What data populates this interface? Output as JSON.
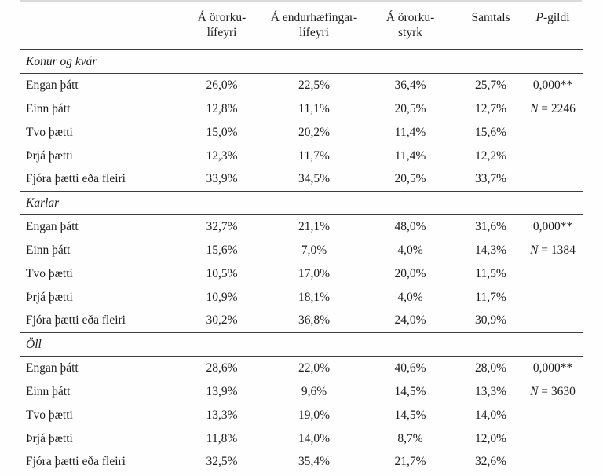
{
  "chart_data": {
    "type": "table",
    "title": "",
    "columns": [
      "",
      "Á örorku-lífeyri",
      "Á endurhæfingar-lífeyri",
      "Á örorku-styrk",
      "Samtals",
      "P-gildi"
    ],
    "header": {
      "col0": "",
      "col1": {
        "line1": "Á örorku-",
        "line2": "lífeyri"
      },
      "col2": {
        "line1": "Á endurhæfingar-",
        "line2": "lífeyri"
      },
      "col3": {
        "line1": "Á örorku-",
        "line2": "styrk"
      },
      "col4": {
        "line1": "Samtals",
        "line2": ""
      },
      "col5": {
        "italic": "P",
        "rest": "-gildi"
      }
    },
    "groups": [
      {
        "name": "Konur og kvár",
        "rows": [
          {
            "label": "Engan þátt",
            "values": [
              "26,0%",
              "22,5%",
              "36,4%",
              "25,7%"
            ],
            "note": {
              "italic": "",
              "text": "0,000**"
            }
          },
          {
            "label": "Einn þátt",
            "values": [
              "12,8%",
              "11,1%",
              "20,5%",
              "12,7%"
            ],
            "note": {
              "italic": "N",
              "text": " = 2246"
            }
          },
          {
            "label": "Tvo þætti",
            "values": [
              "15,0%",
              "20,2%",
              "11,4%",
              "15,6%"
            ]
          },
          {
            "label": "Þrjá þætti",
            "values": [
              "12,3%",
              "11,7%",
              "11,4%",
              "12,2%"
            ]
          },
          {
            "label": "Fjóra þætti eða fleiri",
            "values": [
              "33,9%",
              "34,5%",
              "20,5%",
              "33,7%"
            ]
          }
        ]
      },
      {
        "name": "Karlar",
        "rows": [
          {
            "label": "Engan þátt",
            "values": [
              "32,7%",
              "21,1%",
              "48,0%",
              "31,6%"
            ],
            "note": {
              "italic": "",
              "text": "0,000**"
            }
          },
          {
            "label": "Einn þátt",
            "values": [
              "15,6%",
              "7,0%",
              "4,0%",
              "14,3%"
            ],
            "note": {
              "italic": "N",
              "text": " = 1384"
            }
          },
          {
            "label": "Tvo þætti",
            "values": [
              "10,5%",
              "17,0%",
              "20,0%",
              "11,5%"
            ]
          },
          {
            "label": "Þrjá þætti",
            "values": [
              "10,9%",
              "18,1%",
              "4,0%",
              "11,7%"
            ]
          },
          {
            "label": "Fjóra þætti eða fleiri",
            "values": [
              "30,2%",
              "36,8%",
              "24,0%",
              "30,9%"
            ]
          }
        ]
      },
      {
        "name": "Öll",
        "rows": [
          {
            "label": "Engan þátt",
            "values": [
              "28,6%",
              "22,0%",
              "40,6%",
              "28,0%"
            ],
            "note": {
              "italic": "",
              "text": "0,000**"
            }
          },
          {
            "label": "Einn þátt",
            "values": [
              "13,9%",
              "9,6%",
              "14,5%",
              "13,3%"
            ],
            "note": {
              "italic": "N",
              "text": " = 3630"
            }
          },
          {
            "label": "Tvo þætti",
            "values": [
              "13,3%",
              "19,0%",
              "14,5%",
              "14,0%"
            ]
          },
          {
            "label": "Þrjá þætti",
            "values": [
              "11,8%",
              "14,0%",
              "8,7%",
              "12,0%"
            ]
          },
          {
            "label": "Fjóra þætti eða fleiri",
            "values": [
              "32,5%",
              "35,4%",
              "21,7%",
              "32,6%"
            ]
          }
        ]
      }
    ]
  }
}
